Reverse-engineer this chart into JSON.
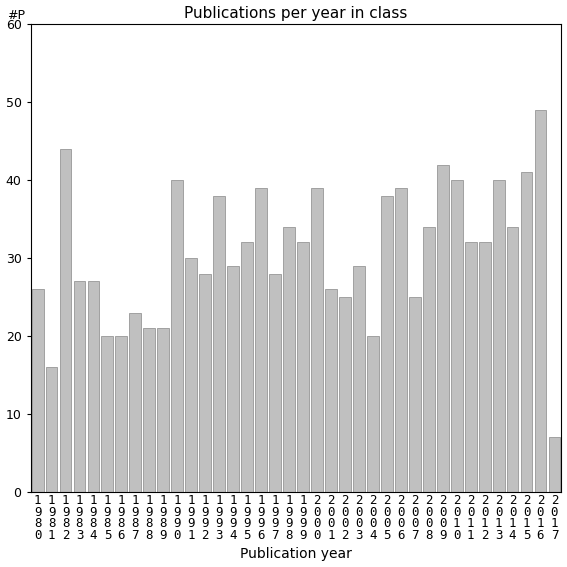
{
  "title": "Publications per year in class",
  "xlabel": "Publication year",
  "ylabel_text": "#P",
  "years": [
    1980,
    1981,
    1982,
    1983,
    1984,
    1985,
    1986,
    1987,
    1988,
    1989,
    1990,
    1991,
    1992,
    1993,
    1994,
    1995,
    1996,
    1997,
    1998,
    1999,
    2000,
    2001,
    2002,
    2003,
    2004,
    2005,
    2006,
    2007,
    2008,
    2009,
    2010,
    2011,
    2012,
    2013,
    2014,
    2015,
    2016,
    2017
  ],
  "values": [
    26,
    16,
    44,
    27,
    27,
    20,
    20,
    23,
    21,
    21,
    40,
    30,
    28,
    38,
    29,
    32,
    39,
    28,
    34,
    32,
    39,
    26,
    25,
    29,
    20,
    38,
    39,
    25,
    34,
    42,
    40,
    32,
    32,
    40,
    34,
    41,
    49,
    7
  ],
  "bar_color": "#c0c0c0",
  "bar_edgecolor": "#888888",
  "ylim": [
    0,
    60
  ],
  "yticks": [
    0,
    10,
    20,
    30,
    40,
    50,
    60
  ],
  "background_color": "#ffffff",
  "title_fontsize": 11,
  "axis_label_fontsize": 10,
  "tick_fontsize": 9
}
